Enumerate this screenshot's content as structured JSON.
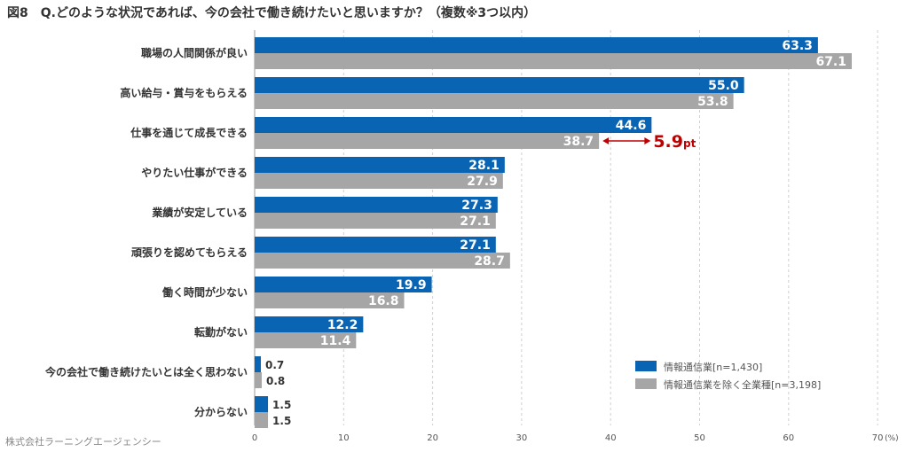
{
  "page": {
    "title": "図8　Q.どのような状況であれば、今の会社で働き続けたいと思いますか？（複数※3つ以内）",
    "credit": "株式会社ラーニングエージェンシー"
  },
  "chart_data": {
    "type": "bar",
    "orientation": "horizontal",
    "categories": [
      "職場の人間関係が良い",
      "高い給与・賞与をもらえる",
      "仕事を通じて成長できる",
      "やりたい仕事ができる",
      "業績が安定している",
      "頑張りを認めてもらえる",
      "働く時間が少ない",
      "転勤がない",
      "今の会社で働き続けたいとは全く思わない",
      "分からない"
    ],
    "series": [
      {
        "name": "情報通信業[n=1,430]",
        "color": "#0a64b4",
        "values": [
          63.3,
          55.0,
          44.6,
          28.1,
          27.3,
          27.1,
          19.9,
          12.2,
          0.7,
          1.5
        ],
        "labels": [
          "63.3",
          "55.0",
          "44.6",
          "28.1",
          "27.3",
          "27.1",
          "19.9",
          "12.2",
          "0.7",
          "1.5"
        ]
      },
      {
        "name": "情報通信業を除く全業種[n=3,198]",
        "color": "#a6a6a6",
        "values": [
          67.1,
          53.8,
          38.7,
          27.9,
          27.1,
          28.7,
          16.8,
          11.4,
          0.8,
          1.5
        ],
        "labels": [
          "67.1",
          "53.8",
          "38.7",
          "27.9",
          "27.1",
          "28.7",
          "16.8",
          "11.4",
          "0.8",
          "1.5"
        ]
      }
    ],
    "xlim": [
      0,
      70
    ],
    "ticks": [
      "0",
      "10",
      "20",
      "30",
      "40",
      "50",
      "60",
      "70"
    ],
    "unit": "(%)",
    "grid": "vertical-dashed",
    "legend": "bottom-right",
    "annotation": {
      "category_index": 2,
      "value": "5.9",
      "unit": "pt",
      "color": "#c00000"
    }
  }
}
